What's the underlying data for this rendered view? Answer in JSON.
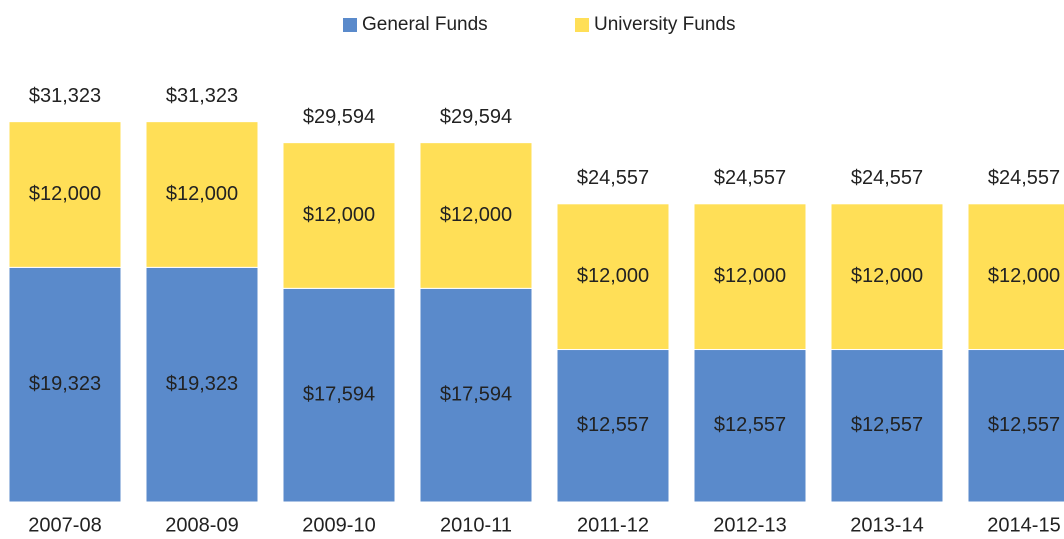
{
  "chart_data": {
    "type": "stacked_bar",
    "categories": [
      "2007-08",
      "2008-09",
      "2009-10",
      "2010-11",
      "2011-12",
      "2012-13",
      "2013-14",
      "2014-15"
    ],
    "series": [
      {
        "name": "General Funds",
        "color": "#5a8acb",
        "values": [
          19323,
          19323,
          17594,
          17594,
          12557,
          12557,
          12557,
          12557
        ],
        "value_labels": [
          "$19,323",
          "$19,323",
          "$17,594",
          "$17,594",
          "$12,557",
          "$12,557",
          "$12,557",
          "$12,557"
        ]
      },
      {
        "name": "University Funds",
        "color": "#ffdf57",
        "values": [
          12000,
          12000,
          12000,
          12000,
          12000,
          12000,
          12000,
          12000
        ],
        "value_labels": [
          "$12,000",
          "$12,000",
          "$12,000",
          "$12,000",
          "$12,000",
          "$12,000",
          "$12,000",
          "$12,000"
        ]
      }
    ],
    "totals": [
      31323,
      31323,
      29594,
      29594,
      24557,
      24557,
      24557,
      24557
    ],
    "total_labels": [
      "$31,323",
      "$31,323",
      "$29,594",
      "$29,594",
      "$24,557",
      "$24,557",
      "$24,557",
      "$24,557"
    ],
    "ylim": [
      0,
      35000
    ],
    "legend": "top"
  }
}
